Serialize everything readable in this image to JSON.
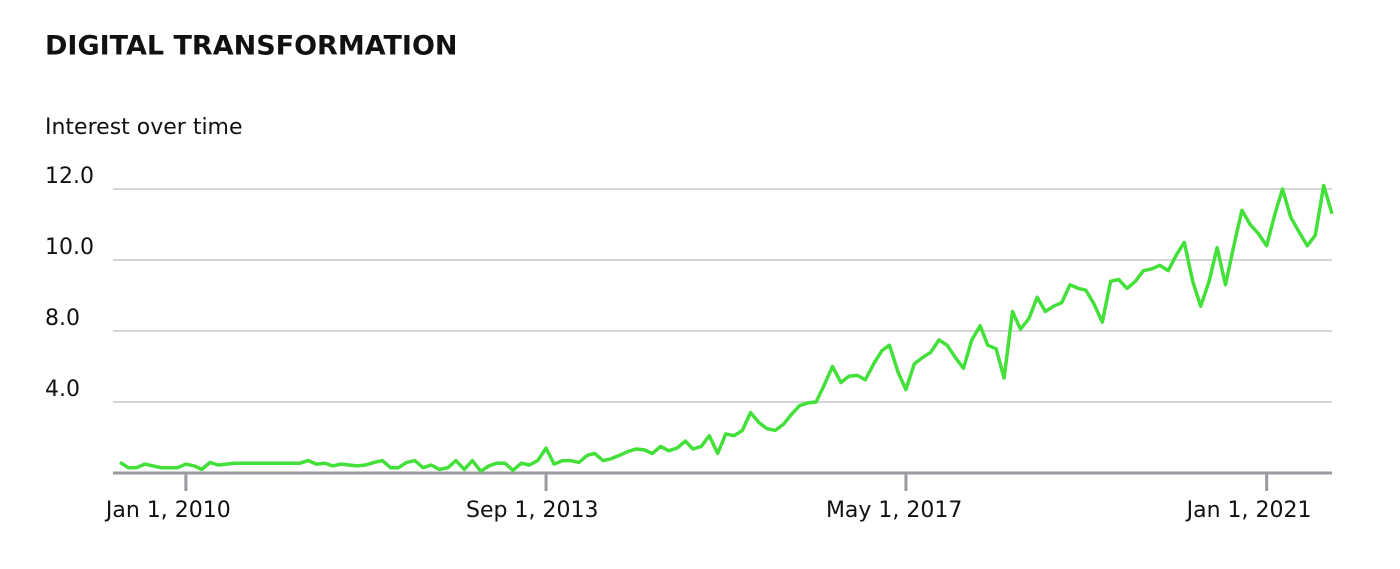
{
  "chart_data": {
    "type": "line",
    "title": "DIGITAL TRANSFORMATION",
    "subtitle": "Interest over time",
    "x": [
      "2009-05-01",
      "2009-06-01",
      "2009-07-01",
      "2009-08-01",
      "2009-09-01",
      "2009-10-01",
      "2009-11-01",
      "2009-12-01",
      "2010-01-01",
      "2010-02-01",
      "2010-03-01",
      "2010-04-01",
      "2010-05-01",
      "2010-06-01",
      "2010-07-01",
      "2010-08-01",
      "2010-09-01",
      "2010-10-01",
      "2010-11-01",
      "2010-12-01",
      "2011-01-01",
      "2011-02-01",
      "2011-03-01",
      "2011-04-01",
      "2011-05-01",
      "2011-06-01",
      "2011-07-01",
      "2011-08-01",
      "2011-09-01",
      "2011-10-01",
      "2011-11-01",
      "2011-12-01",
      "2012-01-01",
      "2012-02-01",
      "2012-03-01",
      "2012-04-01",
      "2012-05-01",
      "2012-06-01",
      "2012-07-01",
      "2012-08-01",
      "2012-09-01",
      "2012-10-01",
      "2012-11-01",
      "2012-12-01",
      "2013-01-01",
      "2013-02-01",
      "2013-03-01",
      "2013-04-01",
      "2013-05-01",
      "2013-06-01",
      "2013-07-01",
      "2013-08-01",
      "2013-09-01",
      "2013-10-01",
      "2013-11-01",
      "2013-12-01",
      "2014-01-01",
      "2014-02-01",
      "2014-03-01",
      "2014-04-01",
      "2014-05-01",
      "2014-06-01",
      "2014-07-01",
      "2014-08-01",
      "2014-09-01",
      "2014-10-01",
      "2014-11-01",
      "2014-12-01",
      "2015-01-01",
      "2015-02-01",
      "2015-03-01",
      "2015-04-01",
      "2015-05-01",
      "2015-06-01",
      "2015-07-01",
      "2015-08-01",
      "2015-09-01",
      "2015-10-01",
      "2015-11-01",
      "2015-12-01",
      "2016-01-01",
      "2016-02-01",
      "2016-03-01",
      "2016-04-01",
      "2016-05-01",
      "2016-06-01",
      "2016-07-01",
      "2016-08-01",
      "2016-09-01",
      "2016-10-01",
      "2016-11-01",
      "2016-12-01",
      "2017-01-01",
      "2017-02-01",
      "2017-03-01",
      "2017-04-01",
      "2017-05-01",
      "2017-06-01",
      "2017-07-01",
      "2017-08-01",
      "2017-09-01",
      "2017-10-01",
      "2017-11-01",
      "2017-12-01",
      "2018-01-01",
      "2018-02-01",
      "2018-03-01",
      "2018-04-01",
      "2018-05-01",
      "2018-06-01",
      "2018-07-01",
      "2018-08-01",
      "2018-09-01",
      "2018-10-01",
      "2018-11-01",
      "2018-12-01",
      "2019-01-01",
      "2019-02-01",
      "2019-03-01",
      "2019-04-01",
      "2019-05-01",
      "2019-06-01",
      "2019-07-01",
      "2019-08-01",
      "2019-09-01",
      "2019-10-01",
      "2019-11-01",
      "2019-12-01",
      "2020-01-01",
      "2020-02-01",
      "2020-03-01",
      "2020-04-01",
      "2020-05-01",
      "2020-06-01",
      "2020-07-01",
      "2020-08-01",
      "2020-09-01",
      "2020-10-01",
      "2020-11-01",
      "2020-12-01",
      "2021-01-01",
      "2021-02-01",
      "2021-03-01",
      "2021-04-01",
      "2021-05-01",
      "2021-06-01",
      "2021-07-01",
      "2021-08-01",
      "2021-09-01"
    ],
    "series": [
      {
        "color": "#44e03a",
        "values": [
          0.6,
          0.3,
          0.3,
          0.5,
          0.4,
          0.3,
          0.3,
          0.3,
          0.5,
          0.4,
          0.2,
          0.6,
          0.45,
          0.5,
          0.55,
          0.55,
          0.55,
          0.55,
          0.55,
          0.55,
          0.55,
          0.55,
          0.55,
          0.7,
          0.5,
          0.55,
          0.4,
          0.5,
          0.45,
          0.4,
          0.45,
          0.6,
          0.7,
          0.3,
          0.3,
          0.6,
          0.7,
          0.3,
          0.45,
          0.2,
          0.3,
          0.7,
          0.2,
          0.7,
          0.1,
          0.4,
          0.55,
          0.55,
          0.15,
          0.55,
          0.45,
          0.7,
          1.4,
          0.5,
          0.7,
          0.7,
          0.6,
          1.0,
          1.1,
          0.7,
          0.8,
          1.0,
          1.2,
          1.35,
          1.3,
          1.1,
          1.5,
          1.25,
          1.4,
          1.8,
          1.35,
          1.5,
          2.1,
          1.1,
          2.2,
          2.1,
          2.4,
          3.4,
          2.85,
          2.5,
          2.4,
          2.75,
          3.3,
          3.8,
          3.95,
          4.0,
          4.95,
          6.0,
          5.1,
          5.45,
          5.5,
          5.25,
          6.15,
          6.9,
          7.2,
          5.7,
          4.7,
          6.15,
          6.5,
          6.8,
          7.5,
          7.2,
          6.5,
          5.9,
          7.5,
          8.15,
          7.2,
          7.0,
          5.35,
          8.55,
          8.05,
          8.35,
          8.95,
          8.55,
          8.7,
          8.8,
          9.3,
          9.2,
          9.15,
          8.75,
          8.25,
          9.4,
          9.45,
          9.2,
          9.4,
          9.7,
          9.75,
          9.85,
          9.7,
          10.15,
          10.5,
          9.4,
          8.7,
          9.4,
          10.35,
          9.3,
          10.4,
          11.4,
          11.0,
          10.75,
          10.4,
          11.3,
          12.0,
          11.2,
          10.8,
          10.4,
          10.7,
          12.1,
          11.3
        ]
      }
    ],
    "xlim": [
      "2009-05-01",
      "2021-09-01"
    ],
    "xticks": [
      {
        "value": "2010-01-01",
        "label": "Jan 1, 2010"
      },
      {
        "value": "2013-09-01",
        "label": "Sep 1, 2013"
      },
      {
        "value": "2017-05-01",
        "label": "May 1, 2017"
      },
      {
        "value": "2021-01-01",
        "label": "Jan 1, 2021"
      }
    ],
    "ylim": [
      0,
      12.4
    ],
    "yticks": [
      {
        "value": 4,
        "label": "4.0"
      },
      {
        "value": 8,
        "label": "8.0"
      },
      {
        "value": 10,
        "label": "10.0"
      },
      {
        "value": 12,
        "label": "12.0"
      }
    ],
    "grid": true
  }
}
